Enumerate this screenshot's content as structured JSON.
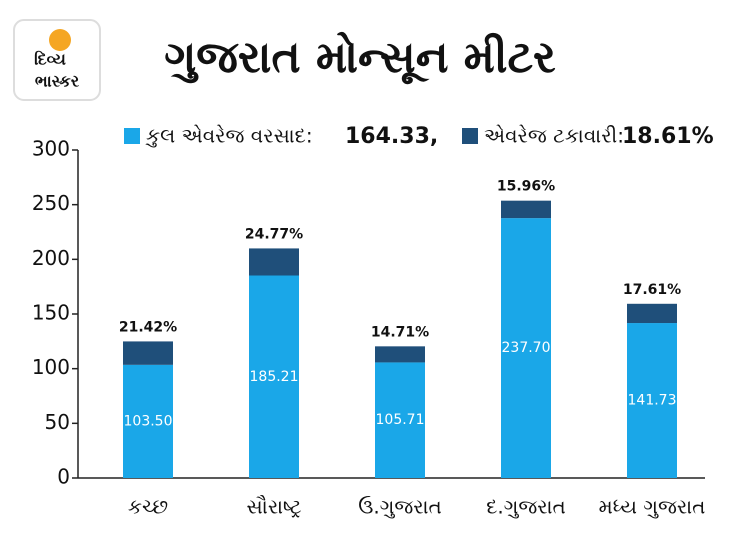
{
  "logo": {
    "text": [
      "દિવ્ય",
      "ભાસ્કર"
    ]
  },
  "chart_data": {
    "type": "stacked-bar",
    "title": "ગુજરાત મોન્સૂન મીટર",
    "categories": [
      "કચ્છ",
      "સૌરાષ્ટ્ર",
      "ઉ.ગુજરાત",
      "દ.ગુજરાત",
      "મધ્ય ગુજરાત"
    ],
    "series": [
      {
        "name": "કુલ એવરેજ વરસાદ:",
        "color": "#1aa7e8",
        "values": [
          103.5,
          185.21,
          105.71,
          237.7,
          141.73
        ],
        "value_labels": [
          "103.50",
          "185.21",
          "105.71",
          "237.70",
          "141.73"
        ]
      },
      {
        "name": "એવરેજ ટકાવારી:",
        "color": "#1f4f7a",
        "values": [
          21.42,
          24.77,
          14.71,
          15.96,
          17.61
        ],
        "value_labels": [
          "21.42%",
          "24.77%",
          "14.71%",
          "15.96%",
          "17.61%"
        ]
      }
    ],
    "annotations": [
      "164.33,",
      "18.61%"
    ],
    "ylim": [
      0,
      300
    ],
    "yticks": [
      0,
      50,
      100,
      150,
      200,
      250,
      300
    ]
  }
}
